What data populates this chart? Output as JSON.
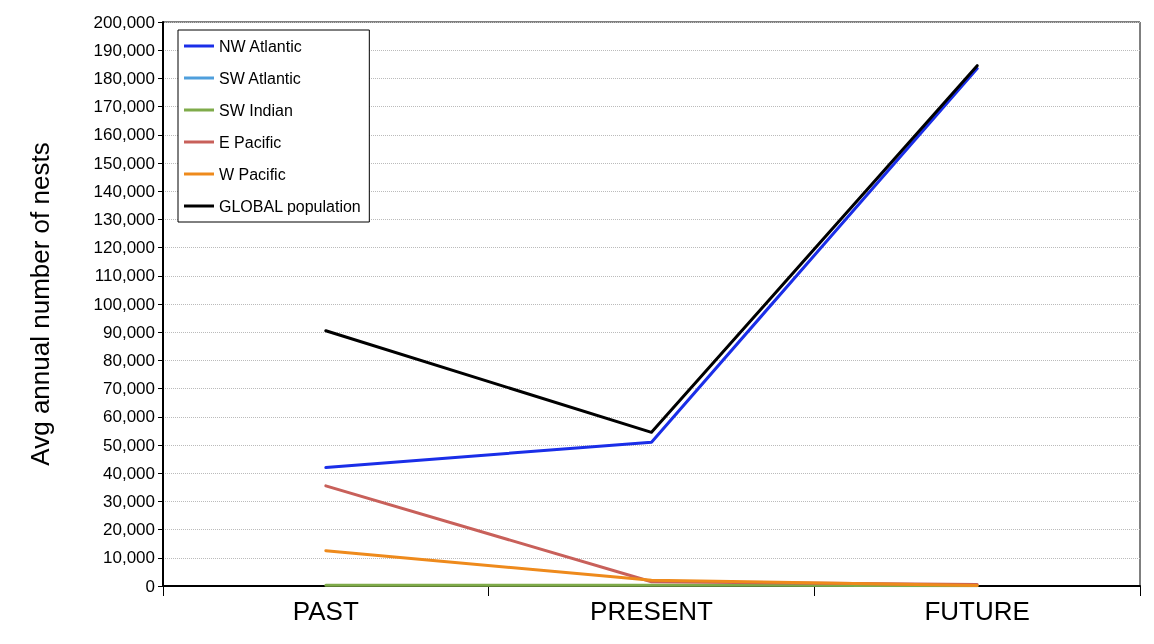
{
  "chart_data": {
    "type": "line",
    "ylabel": "Avg annual number of nests",
    "categories": [
      "PAST",
      "PRESENT",
      "FUTURE"
    ],
    "series": [
      {
        "name": "NW Atlantic",
        "color": "#1a2ee8",
        "values": [
          42000,
          51000,
          183500
        ]
      },
      {
        "name": "SW Atlantic",
        "color": "#4f9fdc",
        "values": [
          null,
          null,
          null
        ]
      },
      {
        "name": "SW Indian",
        "color": "#7fab4a",
        "values": [
          300,
          300,
          100
        ]
      },
      {
        "name": "E Pacific",
        "color": "#c8605a",
        "values": [
          35500,
          1500,
          500
        ]
      },
      {
        "name": "W Pacific",
        "color": "#ee8a1c",
        "values": [
          12500,
          2000,
          200
        ]
      },
      {
        "name": "GLOBAL population",
        "color": "#000000",
        "values": [
          90500,
          54500,
          184500
        ]
      }
    ],
    "ylim": [
      0,
      200000
    ],
    "yticks": [
      0,
      {
        "value": 10000,
        "label": "10,000"
      },
      {
        "value": 20000,
        "label": "20,000"
      },
      {
        "value": 30000,
        "label": "30,000"
      },
      {
        "value": 40000,
        "label": "40,000"
      },
      {
        "value": 50000,
        "label": "50,000"
      },
      {
        "value": 60000,
        "label": "60,000"
      },
      {
        "value": 70000,
        "label": "70,000"
      },
      {
        "value": 80000,
        "label": "80,000"
      },
      {
        "value": 90000,
        "label": "90,000"
      },
      {
        "value": 100000,
        "label": "100,000"
      },
      {
        "value": 110000,
        "label": "110,000"
      },
      {
        "value": 120000,
        "label": "120,000"
      },
      {
        "value": 130000,
        "label": "130,000"
      },
      {
        "value": 140000,
        "label": "140,000"
      },
      {
        "value": 150000,
        "label": "150,000"
      },
      {
        "value": 160000,
        "label": "160,000"
      },
      {
        "value": 170000,
        "label": "170,000"
      },
      {
        "value": 180000,
        "label": "180,000"
      },
      {
        "value": 190000,
        "label": "190,000"
      },
      {
        "value": 200000,
        "label": "200,000"
      }
    ],
    "grid": "y",
    "legend": "top left",
    "marker": "none",
    "line_style": "solid"
  }
}
